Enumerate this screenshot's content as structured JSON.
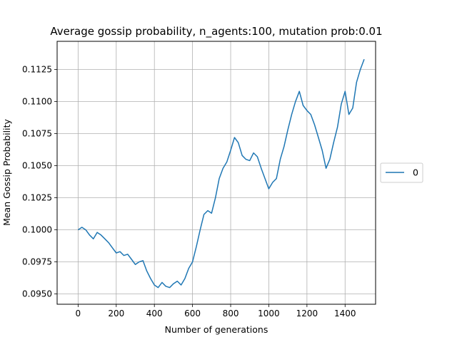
{
  "chart_data": {
    "type": "line",
    "title": "Average gossip probability, n_agents:100, mutation prob:0.01",
    "xlabel": "Number of generations",
    "ylabel": "Mean Gossip Probability",
    "xlim": [
      -110,
      1560
    ],
    "ylim": [
      0.0942,
      0.1147
    ],
    "x_ticks": [
      0,
      200,
      400,
      600,
      800,
      1000,
      1200,
      1400
    ],
    "y_ticks": [
      0.095,
      0.0975,
      0.1,
      0.1025,
      0.105,
      0.1075,
      0.11,
      0.1125
    ],
    "grid": true,
    "legend_position": "center-right outside",
    "series": [
      {
        "name": "0",
        "color": "#1f77b4",
        "points": [
          [
            0,
            0.1
          ],
          [
            20,
            0.1002
          ],
          [
            40,
            0.1
          ],
          [
            60,
            0.0996
          ],
          [
            80,
            0.0993
          ],
          [
            100,
            0.0998
          ],
          [
            120,
            0.0996
          ],
          [
            140,
            0.0993
          ],
          [
            160,
            0.099
          ],
          [
            180,
            0.0986
          ],
          [
            200,
            0.0982
          ],
          [
            220,
            0.0983
          ],
          [
            240,
            0.098
          ],
          [
            260,
            0.0981
          ],
          [
            280,
            0.0977
          ],
          [
            300,
            0.0973
          ],
          [
            320,
            0.0975
          ],
          [
            340,
            0.0976
          ],
          [
            360,
            0.0968
          ],
          [
            380,
            0.0962
          ],
          [
            400,
            0.0957
          ],
          [
            420,
            0.0955
          ],
          [
            440,
            0.0959
          ],
          [
            460,
            0.0956
          ],
          [
            480,
            0.0955
          ],
          [
            500,
            0.0958
          ],
          [
            520,
            0.096
          ],
          [
            540,
            0.0957
          ],
          [
            560,
            0.0962
          ],
          [
            580,
            0.097
          ],
          [
            600,
            0.0975
          ],
          [
            620,
            0.0987
          ],
          [
            640,
            0.1
          ],
          [
            660,
            0.1012
          ],
          [
            680,
            0.1015
          ],
          [
            700,
            0.1013
          ],
          [
            720,
            0.1025
          ],
          [
            740,
            0.104
          ],
          [
            760,
            0.1048
          ],
          [
            780,
            0.1053
          ],
          [
            800,
            0.1062
          ],
          [
            820,
            0.1072
          ],
          [
            840,
            0.1068
          ],
          [
            860,
            0.1058
          ],
          [
            880,
            0.1055
          ],
          [
            900,
            0.1054
          ],
          [
            920,
            0.106
          ],
          [
            940,
            0.1057
          ],
          [
            960,
            0.1048
          ],
          [
            980,
            0.104
          ],
          [
            1000,
            0.1032
          ],
          [
            1020,
            0.1037
          ],
          [
            1040,
            0.104
          ],
          [
            1060,
            0.1055
          ],
          [
            1080,
            0.1065
          ],
          [
            1100,
            0.1078
          ],
          [
            1120,
            0.109
          ],
          [
            1140,
            0.11
          ],
          [
            1160,
            0.1108
          ],
          [
            1180,
            0.1097
          ],
          [
            1200,
            0.1093
          ],
          [
            1220,
            0.109
          ],
          [
            1240,
            0.1082
          ],
          [
            1260,
            0.1072
          ],
          [
            1280,
            0.1062
          ],
          [
            1300,
            0.1048
          ],
          [
            1320,
            0.1055
          ],
          [
            1340,
            0.1068
          ],
          [
            1360,
            0.108
          ],
          [
            1380,
            0.1098
          ],
          [
            1400,
            0.1108
          ],
          [
            1420,
            0.109
          ],
          [
            1440,
            0.1095
          ],
          [
            1460,
            0.1115
          ],
          [
            1480,
            0.1125
          ],
          [
            1500,
            0.1133
          ]
        ]
      }
    ]
  }
}
